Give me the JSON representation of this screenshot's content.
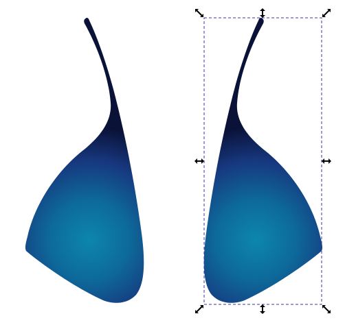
{
  "canvas": {
    "background": "#ffffff"
  },
  "shapes": [
    {
      "name": "left-petal-shape",
      "selected": false,
      "fill": "gradient",
      "colors": [
        "#1d2f78",
        "#0d7fa5",
        "#0a0f2a"
      ]
    },
    {
      "name": "right-petal-shape",
      "selected": true,
      "fill": "gradient",
      "colors": [
        "#1d2f78",
        "#0d7fa5",
        "#0a0f2a"
      ]
    }
  ],
  "selection": {
    "frame_color": "#3b33a8",
    "frame_style": "dashed",
    "handles": [
      {
        "name": "scale-handle-top-left-icon",
        "kind": "diagonal-arrows"
      },
      {
        "name": "scale-handle-top-icon",
        "kind": "vertical-arrows"
      },
      {
        "name": "scale-handle-top-right-icon",
        "kind": "diagonal-arrows"
      },
      {
        "name": "scale-handle-left-icon",
        "kind": "horizontal-arrows"
      },
      {
        "name": "scale-handle-right-icon",
        "kind": "horizontal-arrows"
      },
      {
        "name": "scale-handle-bottom-left-icon",
        "kind": "diagonal-arrows"
      },
      {
        "name": "scale-handle-bottom-icon",
        "kind": "vertical-arrows"
      },
      {
        "name": "scale-handle-bottom-right-icon",
        "kind": "diagonal-arrows"
      }
    ]
  }
}
